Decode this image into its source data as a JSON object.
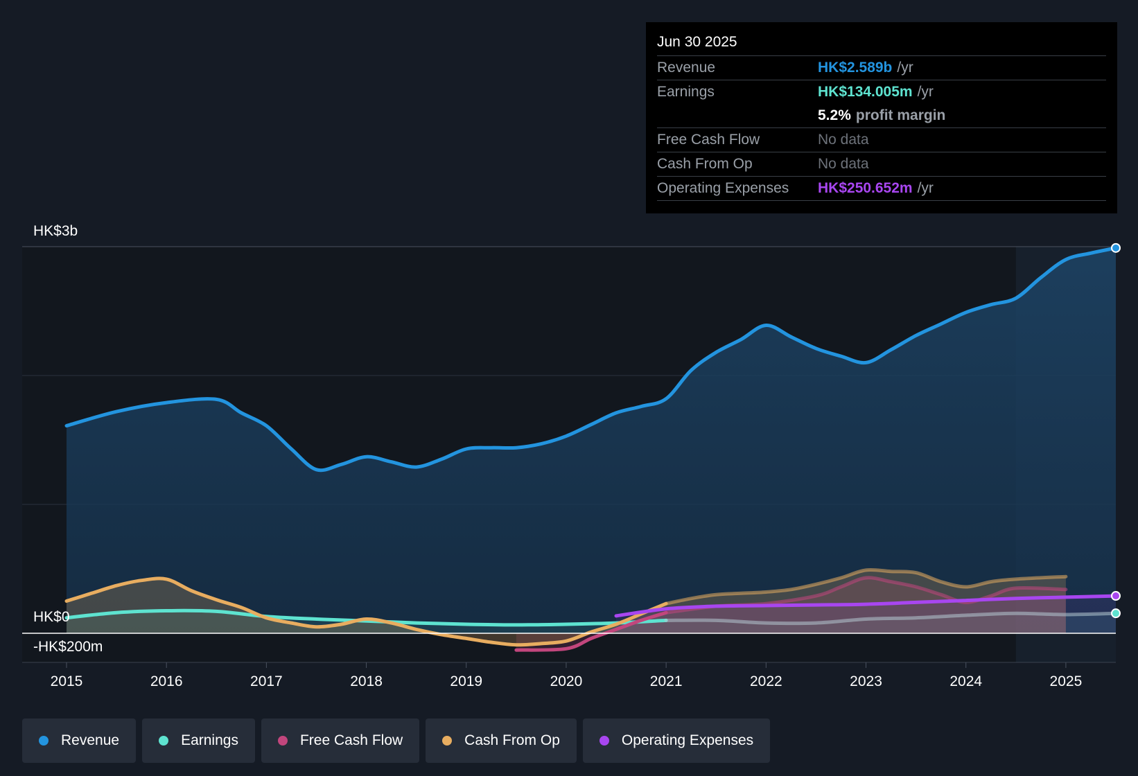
{
  "colors": {
    "background": "#151b25",
    "revenue": "#2394df",
    "earnings": "#5ee3d0",
    "free_cash_flow": "#c2467d",
    "cash_from_op": "#e8ad60",
    "operating_expenses": "#a846f0"
  },
  "tooltip": {
    "date": "Jun 30 2025",
    "revenue_label": "Revenue",
    "revenue_value": "HK$2.589b",
    "revenue_unit": "/yr",
    "earnings_label": "Earnings",
    "earnings_value": "HK$134.005m",
    "earnings_unit": "/yr",
    "margin_value": "5.2%",
    "margin_label": "profit margin",
    "fcf_label": "Free Cash Flow",
    "fcf_value": "No data",
    "cfo_label": "Cash From Op",
    "cfo_value": "No data",
    "opex_label": "Operating Expenses",
    "opex_value": "HK$250.652m",
    "opex_unit": "/yr"
  },
  "legend": [
    {
      "label": "Revenue",
      "icon": "revenue-dot-icon",
      "color": "#2394df"
    },
    {
      "label": "Earnings",
      "icon": "earnings-dot-icon",
      "color": "#5ee3d0"
    },
    {
      "label": "Free Cash Flow",
      "icon": "free-cash-flow-dot-icon",
      "color": "#c2467d"
    },
    {
      "label": "Cash From Op",
      "icon": "cash-from-op-dot-icon",
      "color": "#e8ad60"
    },
    {
      "label": "Operating Expenses",
      "icon": "operating-expenses-dot-icon",
      "color": "#a846f0"
    }
  ],
  "chart_data": {
    "type": "line",
    "title": "",
    "unit": "HK$ millions",
    "y_axis_labels": [
      {
        "label": "HK$3b",
        "value": 3000
      },
      {
        "label": "HK$0",
        "value": 0
      },
      {
        "label": "-HK$200m",
        "value": -200
      }
    ],
    "ylim": [
      -200,
      3000
    ],
    "xlim": [
      2014.55,
      2025.5
    ],
    "x_ticks": [
      2015,
      2016,
      2017,
      2018,
      2019,
      2020,
      2021,
      2022,
      2023,
      2024,
      2025
    ],
    "x_tick_labels": [
      "2015",
      "2016",
      "2017",
      "2018",
      "2019",
      "2020",
      "2021",
      "2022",
      "2023",
      "2024",
      "2025"
    ],
    "highlight_start": 2024.5,
    "series": [
      {
        "name": "Revenue",
        "key": "revenue",
        "points": [
          [
            2015.0,
            1610
          ],
          [
            2015.5,
            1720
          ],
          [
            2016.0,
            1790
          ],
          [
            2016.5,
            1815
          ],
          [
            2016.75,
            1710
          ],
          [
            2017.0,
            1610
          ],
          [
            2017.25,
            1430
          ],
          [
            2017.5,
            1270
          ],
          [
            2017.75,
            1310
          ],
          [
            2018.0,
            1370
          ],
          [
            2018.25,
            1330
          ],
          [
            2018.5,
            1290
          ],
          [
            2018.75,
            1350
          ],
          [
            2019.0,
            1430
          ],
          [
            2019.25,
            1440
          ],
          [
            2019.5,
            1440
          ],
          [
            2019.75,
            1470
          ],
          [
            2020.0,
            1530
          ],
          [
            2020.25,
            1620
          ],
          [
            2020.5,
            1710
          ],
          [
            2020.75,
            1760
          ],
          [
            2021.0,
            1820
          ],
          [
            2021.25,
            2040
          ],
          [
            2021.5,
            2180
          ],
          [
            2021.75,
            2280
          ],
          [
            2022.0,
            2390
          ],
          [
            2022.25,
            2300
          ],
          [
            2022.5,
            2210
          ],
          [
            2022.75,
            2150
          ],
          [
            2023.0,
            2100
          ],
          [
            2023.25,
            2200
          ],
          [
            2023.5,
            2310
          ],
          [
            2023.75,
            2400
          ],
          [
            2024.0,
            2490
          ],
          [
            2024.25,
            2550
          ],
          [
            2024.5,
            2600
          ],
          [
            2024.75,
            2760
          ],
          [
            2025.0,
            2900
          ],
          [
            2025.25,
            2950
          ],
          [
            2025.5,
            2990
          ]
        ]
      },
      {
        "name": "Earnings",
        "key": "earnings",
        "points": [
          [
            2015.0,
            120
          ],
          [
            2015.5,
            160
          ],
          [
            2016.0,
            175
          ],
          [
            2016.5,
            170
          ],
          [
            2017.0,
            130
          ],
          [
            2017.5,
            110
          ],
          [
            2018.0,
            95
          ],
          [
            2018.5,
            80
          ],
          [
            2019.0,
            70
          ],
          [
            2019.5,
            65
          ],
          [
            2020.0,
            70
          ],
          [
            2020.5,
            80
          ],
          [
            2021.0,
            100
          ],
          [
            2021.5,
            100
          ],
          [
            2022.0,
            80
          ],
          [
            2022.5,
            80
          ],
          [
            2023.0,
            110
          ],
          [
            2023.5,
            120
          ],
          [
            2024.0,
            140
          ],
          [
            2024.5,
            155
          ],
          [
            2025.0,
            145
          ],
          [
            2025.5,
            155
          ]
        ]
      },
      {
        "name": "Free Cash Flow",
        "key": "free_cash_flow",
        "points": [
          [
            2019.5,
            -130
          ],
          [
            2020.0,
            -120
          ],
          [
            2020.25,
            -40
          ],
          [
            2020.5,
            30
          ],
          [
            2020.75,
            100
          ],
          [
            2021.0,
            160
          ],
          [
            2021.5,
            210
          ],
          [
            2022.0,
            230
          ],
          [
            2022.5,
            290
          ],
          [
            2022.75,
            360
          ],
          [
            2023.0,
            430
          ],
          [
            2023.25,
            400
          ],
          [
            2023.5,
            360
          ],
          [
            2023.75,
            300
          ],
          [
            2024.0,
            240
          ],
          [
            2024.25,
            290
          ],
          [
            2024.5,
            350
          ],
          [
            2025.0,
            340
          ]
        ]
      },
      {
        "name": "Cash From Op",
        "key": "cash_from_op",
        "points": [
          [
            2015.0,
            250
          ],
          [
            2015.25,
            310
          ],
          [
            2015.5,
            370
          ],
          [
            2015.75,
            410
          ],
          [
            2016.0,
            420
          ],
          [
            2016.25,
            330
          ],
          [
            2016.5,
            260
          ],
          [
            2016.75,
            200
          ],
          [
            2017.0,
            120
          ],
          [
            2017.25,
            80
          ],
          [
            2017.5,
            50
          ],
          [
            2017.75,
            70
          ],
          [
            2018.0,
            110
          ],
          [
            2018.25,
            80
          ],
          [
            2018.5,
            30
          ],
          [
            2018.75,
            -10
          ],
          [
            2019.0,
            -40
          ],
          [
            2019.25,
            -70
          ],
          [
            2019.5,
            -90
          ],
          [
            2019.75,
            -80
          ],
          [
            2020.0,
            -60
          ],
          [
            2020.25,
            10
          ],
          [
            2020.5,
            70
          ],
          [
            2020.75,
            150
          ],
          [
            2021.0,
            230
          ],
          [
            2021.25,
            270
          ],
          [
            2021.5,
            300
          ],
          [
            2021.75,
            310
          ],
          [
            2022.0,
            320
          ],
          [
            2022.25,
            340
          ],
          [
            2022.5,
            380
          ],
          [
            2022.75,
            430
          ],
          [
            2023.0,
            490
          ],
          [
            2023.25,
            480
          ],
          [
            2023.5,
            470
          ],
          [
            2023.75,
            400
          ],
          [
            2024.0,
            360
          ],
          [
            2024.25,
            400
          ],
          [
            2024.5,
            420
          ],
          [
            2025.0,
            440
          ]
        ]
      },
      {
        "name": "Operating Expenses",
        "key": "operating_expenses",
        "points": [
          [
            2020.5,
            135
          ],
          [
            2021.0,
            190
          ],
          [
            2021.5,
            210
          ],
          [
            2022.0,
            215
          ],
          [
            2022.5,
            220
          ],
          [
            2023.0,
            225
          ],
          [
            2023.5,
            240
          ],
          [
            2024.0,
            255
          ],
          [
            2024.5,
            270
          ],
          [
            2025.0,
            280
          ],
          [
            2025.5,
            290
          ]
        ]
      }
    ]
  }
}
